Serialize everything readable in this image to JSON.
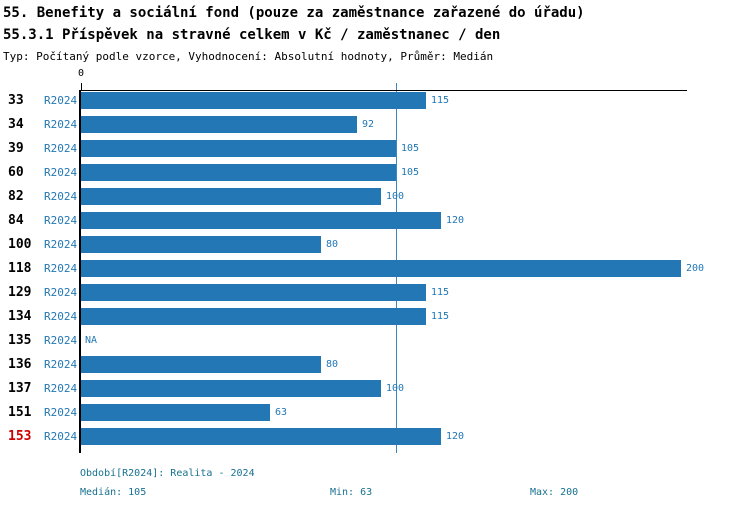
{
  "header": {
    "title_line1": "55. Benefity a sociální fond (pouze za zaměstnance zařazené do úřadu)",
    "title_line2": "55.3.1 Příspěvek na stravné celkem v Kč / zaměstnanec / den",
    "meta_line": "Typ: Počítaný podle vzorce, Vyhodnocení: Absolutní hodnoty, Průměr: Medián"
  },
  "chart_data": {
    "type": "bar",
    "orientation": "horizontal",
    "title": "55.3.1 Příspěvek na stravné celkem v Kč / zaměstnanec / den",
    "categories": [
      "33",
      "34",
      "39",
      "60",
      "82",
      "84",
      "100",
      "118",
      "129",
      "134",
      "135",
      "136",
      "137",
      "151",
      "153"
    ],
    "series": [
      {
        "name": "R2024",
        "values": [
          115,
          92,
          105,
          105,
          100,
          120,
          80,
          200,
          115,
          115,
          null,
          80,
          100,
          63,
          120
        ]
      }
    ],
    "na_label": "NA",
    "highlight_category": "153",
    "highlight_color": "#cc0000",
    "x_tick_labels": [
      "0"
    ],
    "xlim": [
      0,
      202
    ],
    "median_line_value": 105,
    "value_labels_shown": true,
    "grid": false,
    "legend_position": "none",
    "bar_color": "#2277b4",
    "label_color": "#2277b4",
    "median_line_color": "#3c87c0",
    "axis_color": "#000000"
  },
  "footer": {
    "period": "Období[R2024]: Realita - 2024",
    "median": "Medián: 105",
    "min": "Min: 63",
    "max": "Max: 200",
    "text_color": "#17718f"
  }
}
